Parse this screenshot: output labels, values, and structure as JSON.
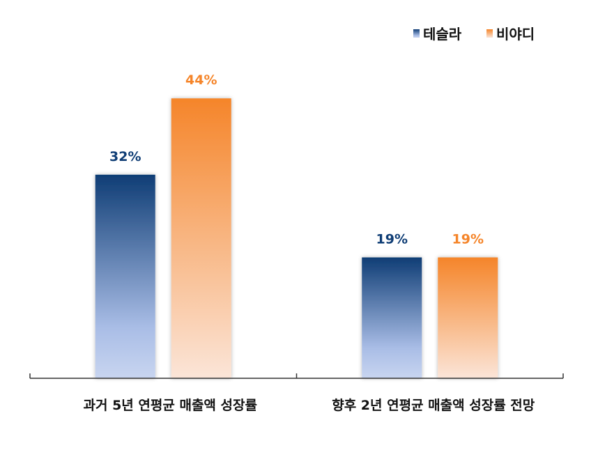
{
  "chart_data": {
    "type": "bar",
    "categories": [
      "과거 5년 연평균 매출액 성장률",
      "향후 2년 연평균 매출액 성장률 전망"
    ],
    "series": [
      {
        "name": "테슬라",
        "values": [
          32,
          19
        ],
        "labels": [
          "32%",
          "19%"
        ],
        "color": "#0f3d75",
        "color_light": "#c6d2ee"
      },
      {
        "name": "비야디",
        "values": [
          44,
          19
        ],
        "labels": [
          "44%",
          "19%"
        ],
        "color": "#f5852a",
        "color_light": "#fbe3d4"
      }
    ],
    "ylim": [
      0,
      50
    ],
    "unit": "%",
    "legend_position": "top-right",
    "grid": false
  }
}
